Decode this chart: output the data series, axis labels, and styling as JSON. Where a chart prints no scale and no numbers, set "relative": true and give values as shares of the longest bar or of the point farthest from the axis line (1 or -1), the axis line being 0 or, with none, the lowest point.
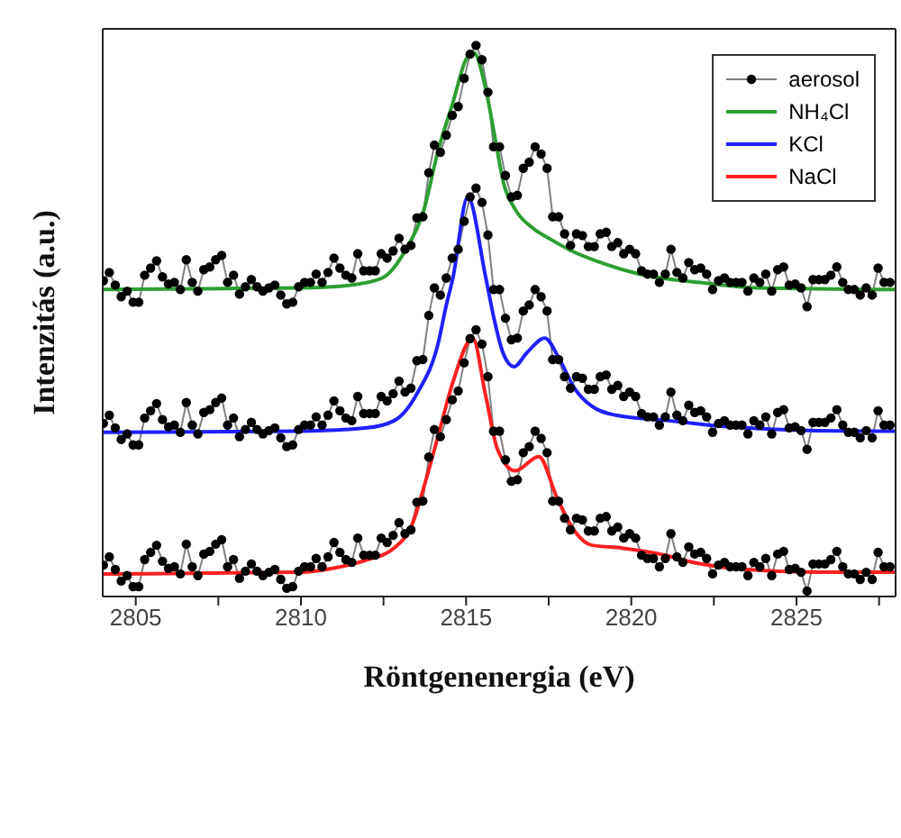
{
  "chart_data": {
    "type": "line",
    "xlabel": "Röntgenenergia (eV)",
    "ylabel": "Intenzitás (a.u.)",
    "relative": true,
    "xlim": [
      2804,
      2828
    ],
    "xticks": [
      2805,
      {
        "value": 2807.5,
        "label": null
      },
      2810,
      {
        "value": 2812.5,
        "label": null
      },
      2815,
      {
        "value": 2817.5,
        "label": null
      },
      2820,
      {
        "value": 2822.5,
        "label": null
      },
      2825,
      {
        "value": 2827.5,
        "label": null
      }
    ],
    "legend": "top right",
    "line_style": "solid",
    "marker": "none",
    "x": [
      2804.02,
      2804.2,
      2804.38,
      2804.56,
      2804.74,
      2804.92,
      2805.09,
      2805.27,
      2805.45,
      2805.63,
      2805.81,
      2805.99,
      2806.17,
      2806.35,
      2806.53,
      2806.71,
      2806.88,
      2807.06,
      2807.24,
      2807.42,
      2807.6,
      2807.78,
      2807.96,
      2808.14,
      2808.32,
      2808.5,
      2808.67,
      2808.85,
      2809.03,
      2809.21,
      2809.39,
      2809.57,
      2809.75,
      2809.93,
      2810.11,
      2810.29,
      2810.46,
      2810.64,
      2810.82,
      2811.0,
      2811.18,
      2811.36,
      2811.54,
      2811.72,
      2811.9,
      2812.08,
      2812.25,
      2812.43,
      2812.61,
      2812.79,
      2812.97,
      2813.15,
      2813.33,
      2813.51,
      2813.69,
      2813.87,
      2814.04,
      2814.22,
      2814.4,
      2814.58,
      2814.76,
      2814.94,
      2815.12,
      2815.3,
      2815.48,
      2815.66,
      2815.83,
      2816.01,
      2816.19,
      2816.37,
      2816.55,
      2816.73,
      2816.91,
      2817.09,
      2817.27,
      2817.45,
      2817.62,
      2817.8,
      2817.98,
      2818.16,
      2818.34,
      2818.52,
      2818.7,
      2818.88,
      2819.06,
      2819.24,
      2819.41,
      2819.59,
      2819.77,
      2819.95,
      2820.13,
      2820.31,
      2820.49,
      2820.67,
      2820.85,
      2821.03,
      2821.2,
      2821.38,
      2821.56,
      2821.74,
      2821.92,
      2822.1,
      2822.28,
      2822.46,
      2822.64,
      2822.82,
      2822.99,
      2823.17,
      2823.35,
      2823.53,
      2823.71,
      2823.89,
      2824.07,
      2824.25,
      2824.43,
      2824.61,
      2824.78,
      2824.96,
      2825.14,
      2825.32,
      2825.5,
      2825.68,
      2825.86,
      2826.04,
      2826.22,
      2826.4,
      2826.57,
      2826.75,
      2826.93,
      2827.11,
      2827.29,
      2827.47,
      2827.65,
      2827.83
    ],
    "series": [
      {
        "name": "aerosol",
        "color": "#000000",
        "marker": "circle",
        "values": [
          0.573,
          0.588,
          0.565,
          0.544,
          0.554,
          0.534,
          0.534,
          0.583,
          0.596,
          0.609,
          0.58,
          0.567,
          0.57,
          0.557,
          0.611,
          0.57,
          0.554,
          0.593,
          0.598,
          0.611,
          0.619,
          0.57,
          0.583,
          0.549,
          0.562,
          0.575,
          0.562,
          0.554,
          0.56,
          0.565,
          0.547,
          0.531,
          0.534,
          0.562,
          0.57,
          0.57,
          0.585,
          0.57,
          0.588,
          0.614,
          0.596,
          0.583,
          0.578,
          0.622,
          0.591,
          0.591,
          0.591,
          0.622,
          0.614,
          0.627,
          0.65,
          0.63,
          0.637,
          0.687,
          0.689,
          0.769,
          0.819,
          0.806,
          0.837,
          0.873,
          0.889,
          0.94,
          0.984,
          1,
          0.974,
          0.915,
          0.816,
          0.816,
          0.764,
          0.725,
          0.728,
          0.777,
          0.788,
          0.816,
          0.803,
          0.777,
          0.689,
          0.689,
          0.658,
          0.637,
          0.658,
          0.655,
          0.635,
          0.635,
          0.658,
          0.661,
          0.635,
          0.642,
          0.622,
          0.63,
          0.622,
          0.591,
          0.585,
          0.585,
          0.57,
          0.585,
          0.63,
          0.588,
          0.578,
          0.606,
          0.593,
          0.596,
          0.585,
          0.557,
          0.573,
          0.578,
          0.57,
          0.57,
          0.57,
          0.554,
          0.578,
          0.57,
          0.585,
          0.554,
          0.593,
          0.598,
          0.565,
          0.567,
          0.56,
          0.526,
          0.575,
          0.575,
          0.575,
          0.583,
          0.598,
          0.57,
          0.557,
          0.557,
          0.547,
          0.56,
          0.547,
          0.596,
          0.57,
          0.57
        ]
      },
      {
        "color": "#000000",
        "marker": "circle",
        "values": [
          0.314,
          0.329,
          0.306,
          0.285,
          0.295,
          0.275,
          0.275,
          0.324,
          0.337,
          0.35,
          0.321,
          0.308,
          0.311,
          0.298,
          0.352,
          0.311,
          0.295,
          0.334,
          0.339,
          0.352,
          0.36,
          0.311,
          0.324,
          0.29,
          0.303,
          0.316,
          0.303,
          0.295,
          0.301,
          0.306,
          0.288,
          0.272,
          0.275,
          0.303,
          0.311,
          0.311,
          0.326,
          0.311,
          0.329,
          0.355,
          0.337,
          0.324,
          0.319,
          0.363,
          0.332,
          0.332,
          0.332,
          0.363,
          0.355,
          0.368,
          0.391,
          0.371,
          0.378,
          0.428,
          0.43,
          0.51,
          0.56,
          0.547,
          0.578,
          0.614,
          0.63,
          0.681,
          0.725,
          0.741,
          0.715,
          0.656,
          0.557,
          0.557,
          0.505,
          0.466,
          0.469,
          0.518,
          0.529,
          0.557,
          0.544,
          0.518,
          0.43,
          0.43,
          0.399,
          0.378,
          0.399,
          0.396,
          0.376,
          0.376,
          0.399,
          0.402,
          0.376,
          0.383,
          0.363,
          0.371,
          0.363,
          0.332,
          0.326,
          0.326,
          0.311,
          0.326,
          0.371,
          0.329,
          0.319,
          0.347,
          0.334,
          0.337,
          0.326,
          0.298,
          0.314,
          0.319,
          0.311,
          0.311,
          0.311,
          0.295,
          0.319,
          0.311,
          0.326,
          0.295,
          0.334,
          0.339,
          0.306,
          0.308,
          0.301,
          0.267,
          0.316,
          0.316,
          0.316,
          0.324,
          0.339,
          0.311,
          0.298,
          0.298,
          0.288,
          0.301,
          0.288,
          0.337,
          0.311,
          0.311
        ]
      },
      {
        "color": "#000000",
        "marker": "circle",
        "values": [
          0.057,
          0.072,
          0.049,
          0.028,
          0.038,
          0.018,
          0.018,
          0.067,
          0.08,
          0.093,
          0.064,
          0.051,
          0.054,
          0.041,
          0.095,
          0.054,
          0.038,
          0.077,
          0.082,
          0.095,
          0.103,
          0.054,
          0.067,
          0.033,
          0.046,
          0.059,
          0.046,
          0.038,
          0.044,
          0.049,
          0.031,
          0.015,
          0.018,
          0.046,
          0.054,
          0.054,
          0.069,
          0.054,
          0.072,
          0.098,
          0.08,
          0.067,
          0.062,
          0.106,
          0.075,
          0.075,
          0.075,
          0.106,
          0.098,
          0.111,
          0.134,
          0.114,
          0.121,
          0.171,
          0.173,
          0.253,
          0.303,
          0.29,
          0.321,
          0.357,
          0.373,
          0.424,
          0.468,
          0.484,
          0.458,
          0.399,
          0.3,
          0.3,
          0.248,
          0.209,
          0.212,
          0.261,
          0.272,
          0.3,
          0.287,
          0.261,
          0.173,
          0.173,
          0.142,
          0.121,
          0.142,
          0.139,
          0.119,
          0.119,
          0.142,
          0.145,
          0.119,
          0.126,
          0.106,
          0.114,
          0.106,
          0.075,
          0.069,
          0.069,
          0.054,
          0.069,
          0.114,
          0.072,
          0.062,
          0.09,
          0.077,
          0.08,
          0.069,
          0.041,
          0.057,
          0.062,
          0.054,
          0.054,
          0.054,
          0.038,
          0.062,
          0.054,
          0.069,
          0.038,
          0.077,
          0.082,
          0.049,
          0.051,
          0.044,
          0.01,
          0.059,
          0.059,
          0.059,
          0.067,
          0.082,
          0.054,
          0.041,
          0.041,
          0.031,
          0.044,
          0.031,
          0.08,
          0.054,
          0.054
        ]
      },
      {
        "name": "NH₄Cl",
        "color": "#2e9e33",
        "x": [
          2804,
          2808,
          2810,
          2811.5,
          2812.46,
          2813.18,
          2813.71,
          2814.16,
          2814.6,
          2815.0,
          2815.23,
          2815.59,
          2815.86,
          2816.13,
          2816.49,
          2817.03,
          2817.56,
          2818.1,
          2819.17,
          2820.25,
          2822.03,
          2823.82,
          2828
        ],
        "values": [
          0.557,
          0.559,
          0.56,
          0.565,
          0.578,
          0.63,
          0.699,
          0.811,
          0.896,
          0.975,
          0.987,
          0.922,
          0.837,
          0.751,
          0.702,
          0.668,
          0.648,
          0.63,
          0.604,
          0.585,
          0.57,
          0.56,
          0.557
        ]
      },
      {
        "name": "KCl",
        "color": "#2020ff",
        "x": [
          2804,
          2810,
          2812,
          2812.82,
          2813.53,
          2814.16,
          2814.39,
          2814.6,
          2815.05,
          2815.59,
          2815.86,
          2816.13,
          2816.45,
          2816.85,
          2817.38,
          2817.83,
          2818.28,
          2818.81,
          2819.53,
          2821.14,
          2822.93,
          2825.6,
          2828
        ],
        "values": [
          0.298,
          0.3,
          0.306,
          0.319,
          0.37,
          0.461,
          0.526,
          0.578,
          0.725,
          0.58,
          0.5,
          0.44,
          0.417,
          0.443,
          0.469,
          0.43,
          0.378,
          0.345,
          0.329,
          0.319,
          0.308,
          0.301,
          0.3
        ]
      },
      {
        "name": "NaCl",
        "color": "#ff2020",
        "x": [
          2804,
          2810,
          2811.03,
          2811.92,
          2812.82,
          2813.36,
          2813.8,
          2814.16,
          2814.6,
          2815.2,
          2815.59,
          2815.95,
          2816.49,
          2817.2,
          2817.74,
          2818.28,
          2818.81,
          2819.71,
          2820.78,
          2822.03,
          2823.47,
          2825.6,
          2828
        ],
        "values": [
          0.041,
          0.044,
          0.052,
          0.065,
          0.088,
          0.13,
          0.215,
          0.293,
          0.389,
          0.469,
          0.365,
          0.267,
          0.228,
          0.254,
          0.181,
          0.119,
          0.093,
          0.088,
          0.078,
          0.06,
          0.049,
          0.044,
          0.044
        ]
      }
    ]
  }
}
